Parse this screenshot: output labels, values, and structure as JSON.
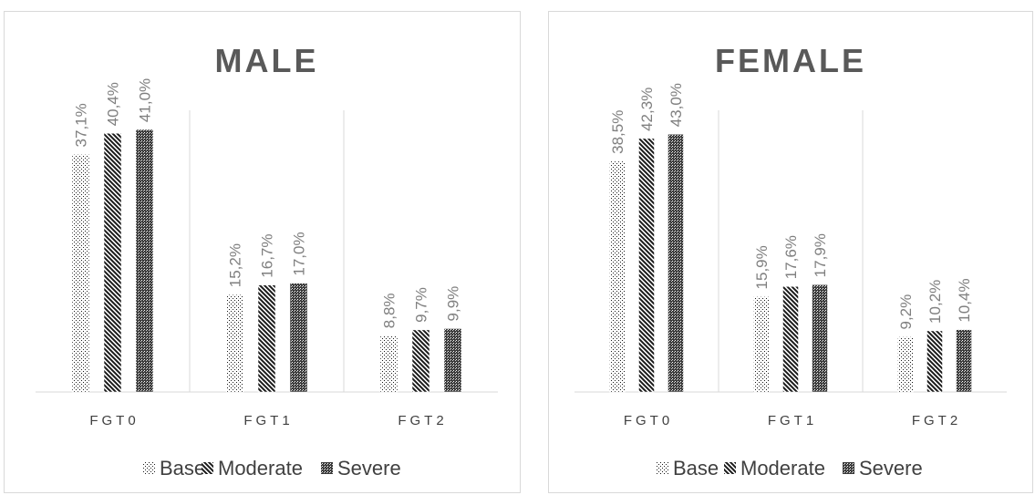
{
  "colors": {
    "ink": "#1a1a1a",
    "grid": "#d9d9d9",
    "label": "#7f7f7f",
    "title": "#595959"
  },
  "chart_data": [
    {
      "type": "bar",
      "title": "MALE",
      "categories": [
        "FGT0",
        "FGT1",
        "FGT2"
      ],
      "series": [
        {
          "name": "Base",
          "pattern": "dots-light",
          "values": [
            37.1,
            15.2,
            8.8
          ],
          "labels": [
            "37,1%",
            "15,2%",
            "8,8%"
          ]
        },
        {
          "name": "Moderate",
          "pattern": "diagonal",
          "values": [
            40.4,
            16.7,
            9.7
          ],
          "labels": [
            "40,4%",
            "16,7%",
            "9,7%"
          ]
        },
        {
          "name": "Severe",
          "pattern": "dense-check",
          "values": [
            41.0,
            17.0,
            9.9
          ],
          "labels": [
            "41,0%",
            "17,0%",
            "9,9%"
          ]
        }
      ],
      "ylim": [
        0,
        44
      ],
      "grid": false,
      "legend": "bottom"
    },
    {
      "type": "bar",
      "title": "FEMALE",
      "categories": [
        "FGT0",
        "FGT1",
        "FGT2"
      ],
      "series": [
        {
          "name": "Base",
          "pattern": "dots-light",
          "values": [
            38.5,
            15.9,
            9.2
          ],
          "labels": [
            "38,5%",
            "15,9%",
            "9,2%"
          ]
        },
        {
          "name": "Moderate",
          "pattern": "diagonal",
          "values": [
            42.3,
            17.6,
            10.2
          ],
          "labels": [
            "42,3%",
            "17,6%",
            "10,2%"
          ]
        },
        {
          "name": "Severe",
          "pattern": "dense-check",
          "values": [
            43.0,
            17.9,
            10.4
          ],
          "labels": [
            "43,0%",
            "17,9%",
            "10,4%"
          ]
        }
      ],
      "ylim": [
        0,
        47
      ],
      "grid": false,
      "legend": "bottom"
    }
  ]
}
